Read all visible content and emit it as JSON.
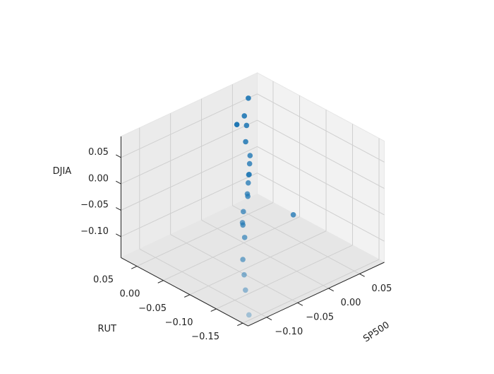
{
  "chart_data": {
    "type": "scatter3d",
    "x_label": "SP500",
    "y_label": "RUT",
    "z_label": "DJIA",
    "color": "#1f77b4",
    "x": [
      -0.12,
      -0.1,
      -0.085,
      -0.07,
      0.02,
      -0.05,
      -0.045,
      -0.04,
      -0.035,
      -0.02,
      -0.015,
      -0.01,
      -0.005,
      0.0,
      0.005,
      0.01,
      0.02,
      0.03,
      0.035,
      0.04,
      0.05
    ],
    "y": [
      -0.15,
      -0.12,
      -0.1,
      -0.08,
      -0.07,
      -0.06,
      -0.05,
      -0.045,
      -0.04,
      -0.03,
      -0.025,
      -0.02,
      -0.015,
      -0.01,
      -0.005,
      0.0,
      0.02,
      0.03,
      0.04,
      0.06,
      0.05
    ],
    "z": [
      -0.13,
      -0.11,
      -0.1,
      -0.09,
      -0.06,
      -0.07,
      -0.05,
      -0.06,
      -0.04,
      -0.02,
      -0.03,
      -0.01,
      0.0,
      -0.005,
      0.01,
      0.02,
      0.03,
      0.05,
      0.06,
      0.03,
      0.08
    ],
    "xlim": [
      -0.13,
      0.09
    ],
    "ylim": [
      -0.16,
      0.08
    ],
    "zlim": [
      -0.14,
      0.09
    ],
    "xticks": [
      {
        "value": -0.1,
        "label": "−0.10"
      },
      {
        "value": -0.05,
        "label": "−0.05"
      },
      {
        "value": 0,
        "label": "0.00"
      },
      0.05
    ],
    "yticks": [
      {
        "value": -0.15,
        "label": "−0.15"
      },
      {
        "value": -0.1,
        "label": "−0.10"
      },
      {
        "value": -0.05,
        "label": "−0.05"
      },
      {
        "value": 0,
        "label": "0.00"
      },
      0.05
    ],
    "zticks": [
      {
        "value": -0.1,
        "label": "−0.10"
      },
      {
        "value": -0.05,
        "label": "−0.05"
      },
      {
        "value": 0,
        "label": "0.00"
      },
      0.05
    ],
    "grid": true
  }
}
